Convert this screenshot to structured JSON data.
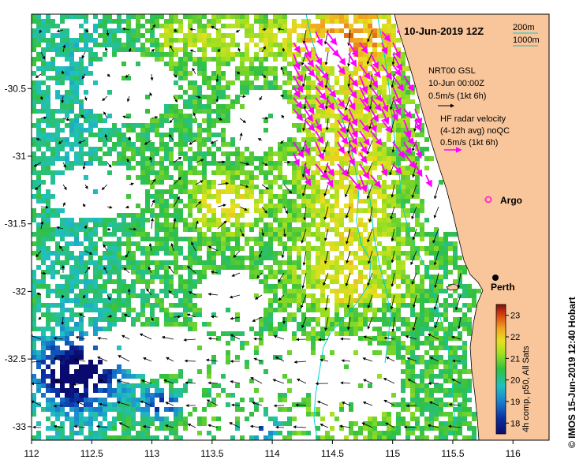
{
  "title": "10-Jun-2019 12Z",
  "depth_legend": {
    "line1": "200m",
    "line2": "1000m"
  },
  "gsl_block": {
    "line1": "NRT00 GSL",
    "line2": "10-Jun 00:00Z",
    "line3": "0.5m/s (1kt 6h)"
  },
  "hf_block": {
    "line1": "HF radar velocity",
    "line2": "(4-12h avg) noQC",
    "line3": "0.5m/s (1kt 6h)"
  },
  "places": {
    "argo": "Argo",
    "perth": "Perth"
  },
  "colorbar": {
    "ticks": [
      "23",
      "22",
      "21",
      "20",
      "19",
      "18"
    ],
    "label": "4h comp, p50, All Sats"
  },
  "side_credit": "© IMOS 15-Jun-2019 12:40 Hobart",
  "colors": {
    "land": "#f9c69b",
    "depth200": "#00d0d0",
    "depth1000": "#2fb0a0",
    "hf_arrow": "#ff00ff",
    "argo": "#ff33cc"
  },
  "chart_data": {
    "type": "heatmap",
    "xlabel": "",
    "ylabel": "",
    "x_ticks": [
      "112",
      "112.5",
      "113",
      "113.5",
      "114",
      "114.5",
      "115",
      "115.5",
      "116"
    ],
    "y_ticks": [
      "-30.5",
      "-31",
      "-31.5",
      "-32",
      "-32.5",
      "-33"
    ],
    "xlim": [
      112,
      116.3
    ],
    "ylim": [
      -33.1,
      -29.95
    ],
    "sst_range": [
      17.5,
      23.5
    ]
  }
}
